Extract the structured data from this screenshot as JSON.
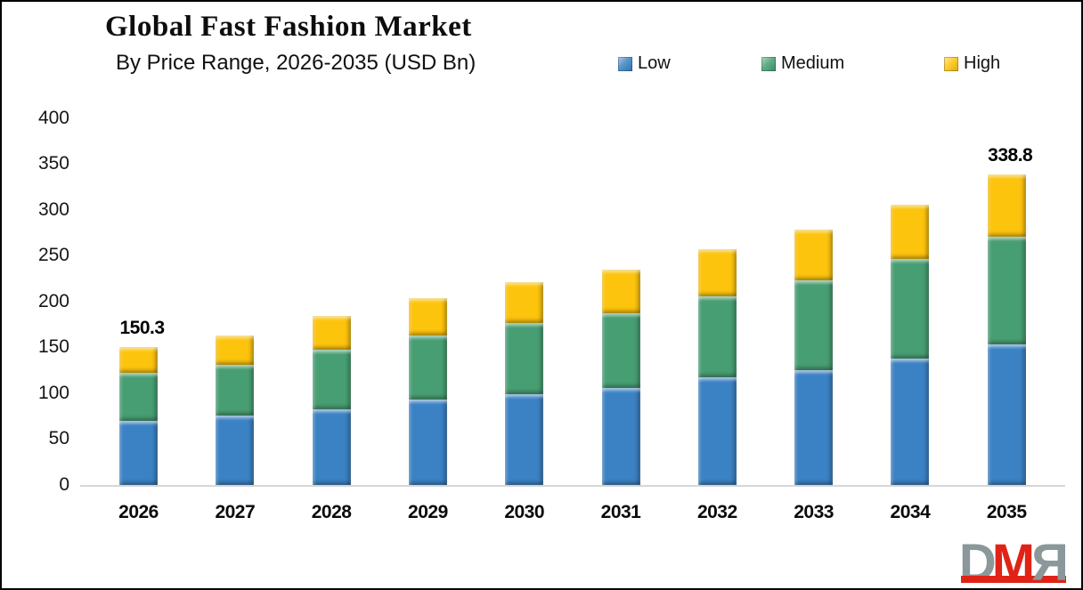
{
  "header": {
    "title": "Global Fast Fashion Market",
    "subtitle": "By Price Range, 2026-2035 (USD Bn)"
  },
  "legend": {
    "items": [
      {
        "label": "Low",
        "color": "#3b82c4"
      },
      {
        "label": "Medium",
        "color": "#479e73"
      },
      {
        "label": "High",
        "color": "#fdc40d"
      }
    ]
  },
  "chart_data": {
    "type": "bar",
    "stacked": true,
    "title": "Global Fast Fashion Market",
    "subtitle": "By Price Range, 2026-2035 (USD Bn)",
    "unit": "USD Bn",
    "categories": [
      "2026",
      "2027",
      "2028",
      "2029",
      "2030",
      "2031",
      "2032",
      "2033",
      "2034",
      "2035"
    ],
    "series": [
      {
        "name": "Low",
        "color": "#3b82c4",
        "values": [
          69.5,
          75.2,
          82.4,
          92.8,
          99.2,
          106.0,
          117.0,
          125.1,
          137.4,
          152.9
        ]
      },
      {
        "name": "Medium",
        "color": "#479e73",
        "values": [
          52.3,
          55.6,
          64.6,
          69.8,
          77.0,
          81.4,
          88.9,
          97.9,
          108.9,
          117.4
        ]
      },
      {
        "name": "High",
        "color": "#fdc40d",
        "values": [
          28.5,
          32.4,
          37.2,
          41.0,
          45.2,
          47.0,
          51.1,
          55.6,
          59.1,
          68.5
        ]
      }
    ],
    "data_labels": [
      {
        "category": "2026",
        "text": "150.3"
      },
      {
        "category": "2035",
        "text": "338.8"
      }
    ],
    "ylim": [
      0,
      400
    ],
    "yticks": [
      0,
      50,
      100,
      150,
      200,
      250,
      300,
      350,
      400
    ],
    "grid": false,
    "legend_position": "top",
    "axis_line_color": "#d6d6d6"
  },
  "logo": {
    "letters": [
      {
        "char": "D",
        "color": "#8b989a",
        "mirror": false
      },
      {
        "char": "M",
        "color": "#df2317",
        "mirror": false
      },
      {
        "char": "R",
        "color": "#8b989a",
        "mirror": true
      }
    ],
    "bar_color": "#df2317"
  }
}
